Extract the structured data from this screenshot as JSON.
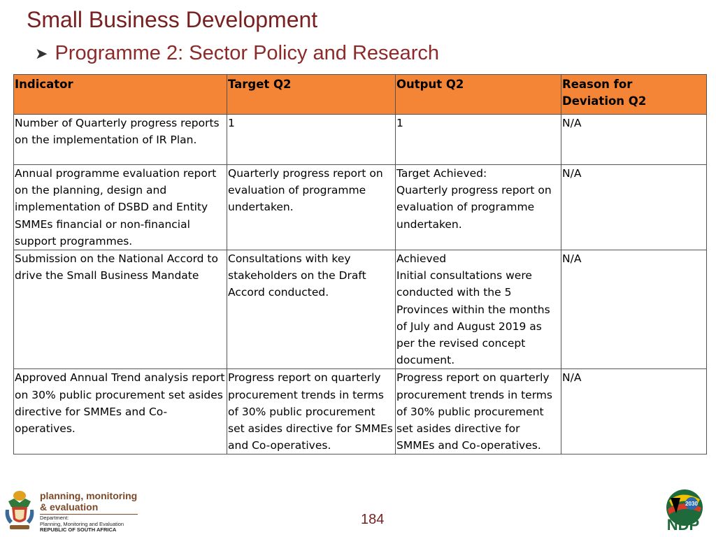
{
  "header": {
    "title": "Small Business Development",
    "subtitle": "Programme 2: Sector Policy and Research",
    "bullet_icon": "arrow-bullet-icon"
  },
  "table": {
    "header_color": "#f58536",
    "columns": [
      "Indicator",
      "Target Q2",
      "Output Q2",
      "Reason for\nDeviation Q2"
    ],
    "rows": [
      {
        "indicator": "Number of Quarterly progress reports on the implementation of IR Plan.",
        "target": "1",
        "output": "1",
        "reason": "N/A"
      },
      {
        "indicator": "Annual programme evaluation report on the planning, design and implementation of DSBD and Entity SMMEs financial or non-financial support programmes.",
        "target": "Quarterly progress report on evaluation of programme undertaken.",
        "output": "Target Achieved:\nQuarterly progress report on evaluation of programme undertaken.",
        "reason": "N/A"
      },
      {
        "indicator": "Submission on the National Accord to drive the Small Business Mandate",
        "target": "Consultations with key stakeholders on the Draft Accord conducted.",
        "output": "Achieved\nInitial consultations were conducted with the 5 Provinces within the months of July and August 2019 as per the revised concept document.",
        "reason": "N/A"
      },
      {
        "indicator": "Approved Annual Trend analysis report on 30% public procurement set asides directive for SMMEs and Co-operatives.",
        "target": "Progress report on quarterly procurement trends in terms of 30% public procurement set asides directive for SMMEs and Co-operatives.",
        "output": " Progress report on quarterly procurement trends in terms of 30% public procurement set asides directive for SMMEs and Co-operatives.",
        "reason": "N/A"
      }
    ]
  },
  "footer": {
    "logo_icon": "coat-of-arms-icon",
    "dept_line1": "planning, monitoring",
    "dept_line2": "& evaluation",
    "dept_small1": "Department:",
    "dept_small2": "Planning, Monitoring and Evaluation",
    "dept_small3": "REPUBLIC OF SOUTH AFRICA",
    "page_number": "184",
    "ndp_icon": "ndp-2030-logo-icon",
    "ndp_text": "NDP",
    "ndp_year": "2030"
  }
}
